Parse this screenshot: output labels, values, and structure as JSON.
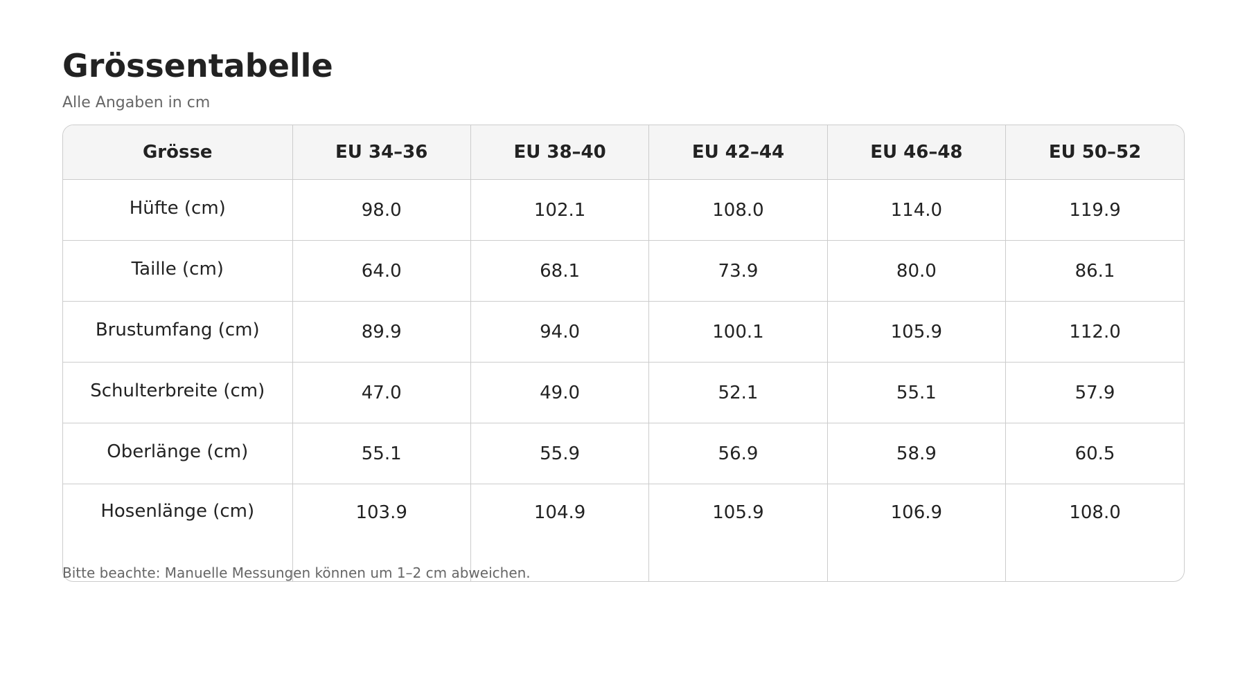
{
  "header": {
    "title": "Grössentabelle",
    "subtitle": "Alle Angaben in cm"
  },
  "table": {
    "columns": [
      "Grösse",
      "EU 34–36",
      "EU 38–40",
      "EU 42–44",
      "EU 46–48",
      "EU 50–52"
    ],
    "rows": [
      [
        "Hüfte (cm)",
        "98.0",
        "102.1",
        "108.0",
        "114.0",
        "119.9"
      ],
      [
        "Taille (cm)",
        "64.0",
        "68.1",
        "73.9",
        "80.0",
        "86.1"
      ],
      [
        "Brustumfang (cm)",
        "89.9",
        "94.0",
        "100.1",
        "105.9",
        "112.0"
      ],
      [
        "Schulterbreite (cm)",
        "47.0",
        "49.0",
        "52.1",
        "55.1",
        "57.9"
      ],
      [
        "Oberlänge (cm)",
        "55.1",
        "55.9",
        "56.9",
        "58.9",
        "60.5"
      ],
      [
        "Hosenlänge (cm)",
        "103.9",
        "104.9",
        "105.9",
        "106.9",
        "108.0"
      ]
    ]
  },
  "footnote": "Bitte beachte: Manuelle Messungen können um 1–2 cm abweichen."
}
